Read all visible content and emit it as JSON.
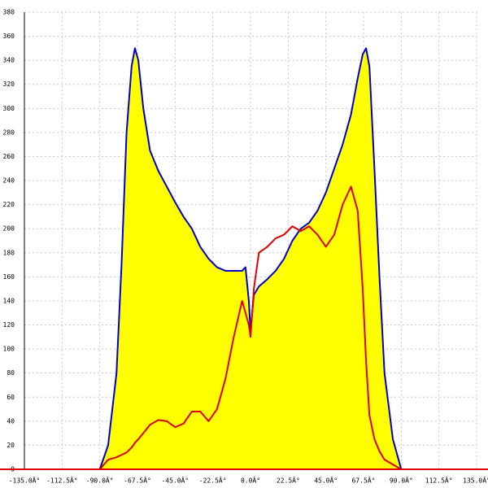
{
  "chart_data": {
    "type": "area-line",
    "x": [
      -90,
      -85,
      -80,
      -77,
      -74,
      -71,
      -69,
      -67,
      -64,
      -60,
      -55,
      -50,
      -45,
      -40,
      -35,
      -30,
      -25,
      -20,
      -15,
      -10,
      -5,
      -3,
      -1,
      0,
      2,
      5,
      10,
      15,
      20,
      25,
      30,
      35,
      40,
      45,
      50,
      55,
      60,
      64,
      67,
      69,
      71,
      74,
      77,
      80,
      85,
      90
    ],
    "series": [
      {
        "color": "#0000cc",
        "fill": "#ffff00",
        "values": [
          0,
          20,
          80,
          170,
          280,
          335,
          350,
          340,
          300,
          265,
          248,
          235,
          222,
          210,
          200,
          185,
          175,
          168,
          165,
          165,
          165,
          168,
          140,
          115,
          145,
          152,
          158,
          165,
          175,
          190,
          200,
          205,
          215,
          230,
          250,
          270,
          295,
          325,
          345,
          350,
          335,
          250,
          160,
          80,
          25,
          0
        ]
      },
      {
        "color": "#dd0000",
        "values": [
          0,
          8,
          10,
          12,
          14,
          18,
          22,
          25,
          30,
          37,
          41,
          40,
          35,
          38,
          48,
          48,
          40,
          50,
          75,
          110,
          140,
          130,
          120,
          110,
          150,
          180,
          185,
          192,
          195,
          202,
          198,
          202,
          195,
          185,
          195,
          220,
          235,
          215,
          150,
          90,
          45,
          25,
          15,
          8,
          4,
          0
        ]
      }
    ],
    "xlim": [
      -135,
      135
    ],
    "xticks": [
      {
        "value": -135,
        "label": "-135.0Â°"
      },
      {
        "value": -112.5,
        "label": "-112.5Â°"
      },
      {
        "value": -90,
        "label": "-90.0Â°"
      },
      {
        "value": -67.5,
        "label": "-67.5Â°"
      },
      {
        "value": -45,
        "label": "-45.0Â°"
      },
      {
        "value": -22.5,
        "label": "-22.5Â°"
      },
      {
        "value": 0,
        "label": "0.0Â°"
      },
      {
        "value": 22.5,
        "label": "22.5Â°"
      },
      {
        "value": 45,
        "label": "45.0Â°"
      },
      {
        "value": 67.5,
        "label": "67.5Â°"
      },
      {
        "value": 90,
        "label": "90.0Â°"
      },
      {
        "value": 112.5,
        "label": "112.5Â°"
      },
      {
        "value": 135,
        "label": "135.0Â°"
      }
    ],
    "ylim": [
      0,
      380
    ],
    "yticks": [
      0,
      20,
      40,
      60,
      80,
      100,
      120,
      140,
      160,
      180,
      200,
      220,
      240,
      260,
      280,
      300,
      320,
      340,
      360,
      380
    ],
    "grid": true
  }
}
